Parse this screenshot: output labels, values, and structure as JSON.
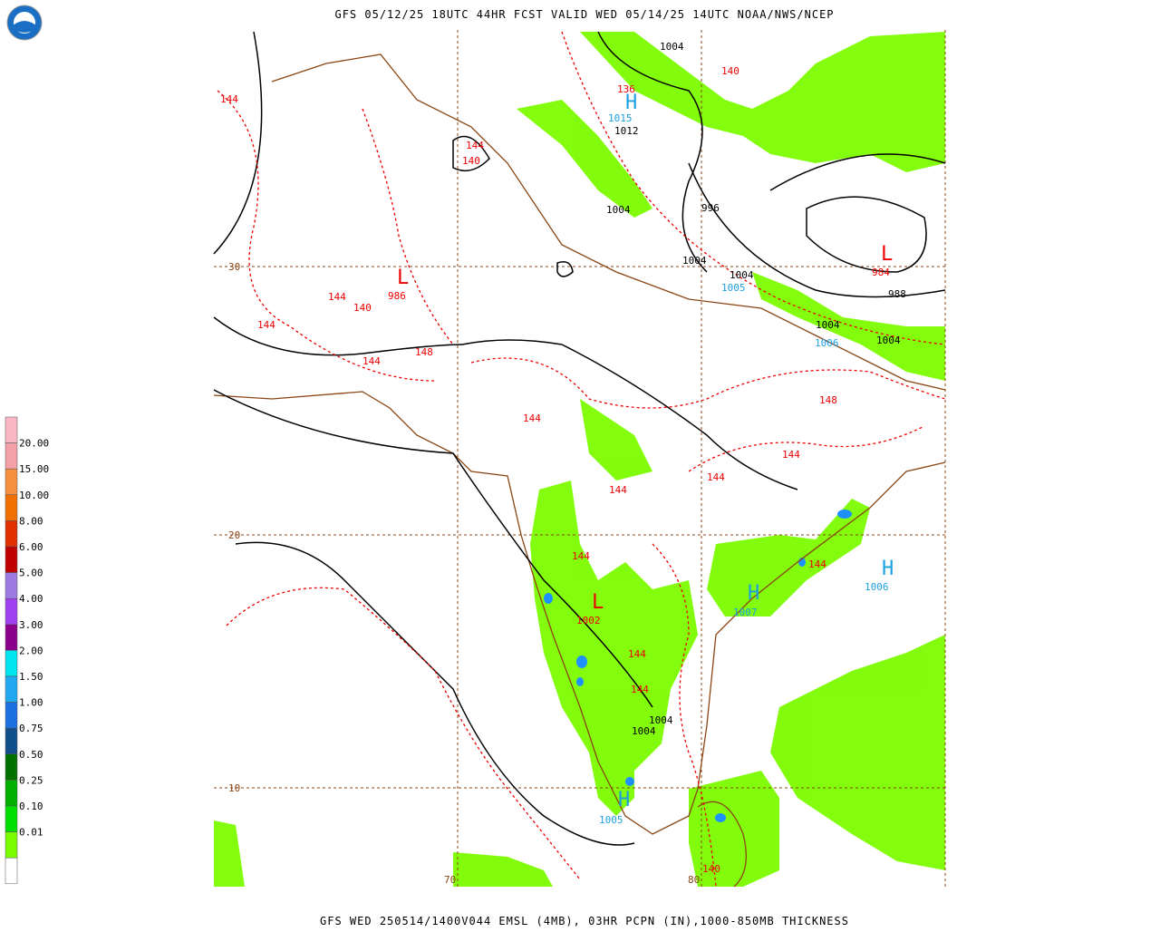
{
  "header": {
    "title": "GFS 05/12/25 18UTC 44HR FCST VALID WED 05/14/25 14UTC NOAA/NWS/NCEP"
  },
  "footer": {
    "text": "GFS WED 250514/1400V044 EMSL (4MB), 03HR PCPN (IN),1000-850MB THICKNESS"
  },
  "legend": {
    "labels": [
      "20.00",
      "15.00",
      "10.00",
      "8.00",
      "6.00",
      "5.00",
      "4.00",
      "3.00",
      "2.00",
      "1.50",
      "1.00",
      "0.75",
      "0.50",
      "0.25",
      "0.10",
      "0.01"
    ]
  },
  "map": {
    "grid_labels": [
      "30",
      "20",
      "10",
      "70",
      "80"
    ],
    "labels": [
      "1004",
      "140",
      "136",
      "H",
      "1015",
      "1012",
      "144",
      "144",
      "140",
      "1004",
      "996",
      "L",
      "984",
      "988",
      "1004",
      "1004",
      "1005",
      "L",
      "986",
      "144",
      "140",
      "144",
      "148",
      "144",
      "1004",
      "1006",
      "1004",
      "148",
      "144",
      "144",
      "144",
      "144",
      "144",
      "144",
      "H",
      "1006",
      "H",
      "1007",
      "L",
      "1002",
      "144",
      "144",
      "1004",
      "1004",
      "H",
      "1005",
      "140"
    ]
  }
}
